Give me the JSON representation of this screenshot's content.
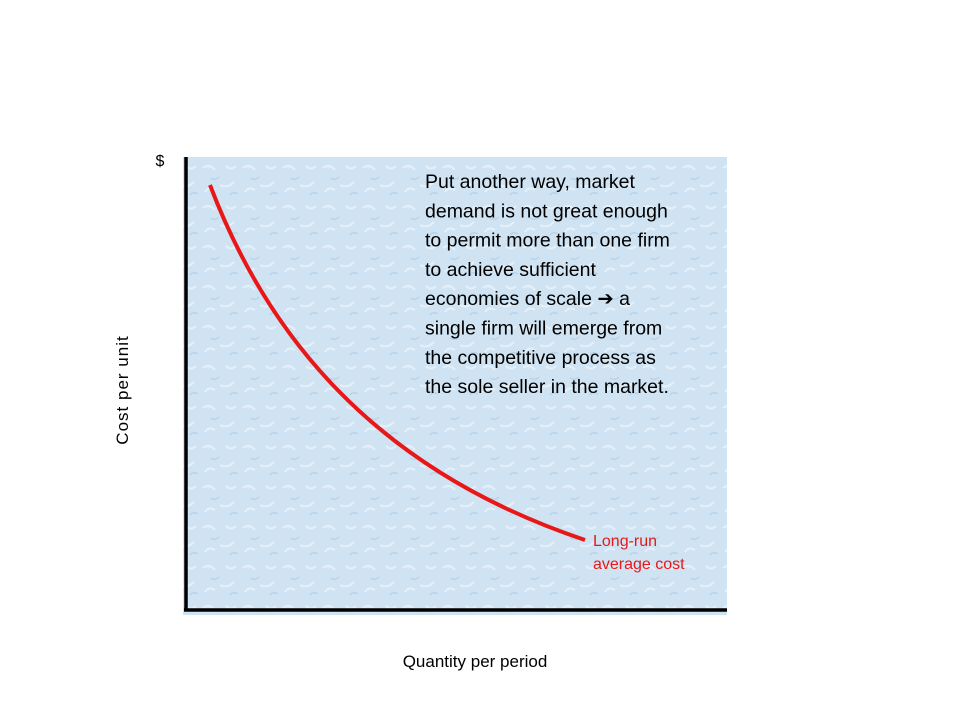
{
  "axes": {
    "y_unit": "$",
    "y_label": "Cost per unit",
    "x_label": "Quantity per period"
  },
  "curve": {
    "label": [
      "Long-run",
      "average cost"
    ]
  },
  "annotation": {
    "lines": [
      "Put another way, market",
      "demand is not great enough",
      "to permit more than one firm",
      "to achieve sufficient",
      "economies of scale ➔ a",
      "single firm will emerge from",
      "the competitive process as",
      "the sole seller in the market."
    ]
  }
}
